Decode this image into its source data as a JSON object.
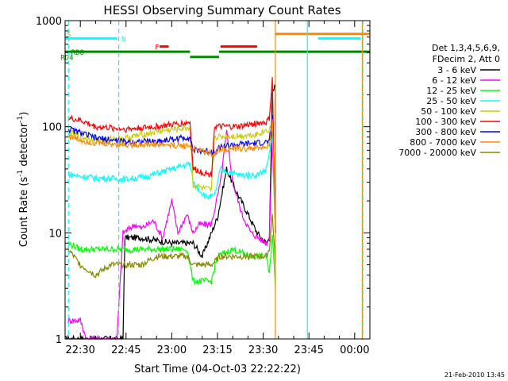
{
  "chart_data": {
    "type": "line",
    "title": "HESSI Observing Summary Count Rates",
    "xlabel": "Start Time (04-Oct-03 22:22:22)",
    "ylabel_main": "Count Rate (s",
    "ylabel_sup": "-1",
    "ylabel_rest": " detector",
    "ylabel_sup2": "-1",
    "ylabel_end": ")",
    "y_scale": "log",
    "ylim": [
      1,
      1000
    ],
    "xlim_minutes": [
      -5,
      95
    ],
    "y_ticks": [
      "1",
      "10",
      "100",
      "1000"
    ],
    "x_ticks": [
      {
        "label": "22:30",
        "t": 0
      },
      {
        "label": "22:45",
        "t": 15
      },
      {
        "label": "23:00",
        "t": 30
      },
      {
        "label": "23:15",
        "t": 45
      },
      {
        "label": "23:30",
        "t": 60
      },
      {
        "label": "23:45",
        "t": 75
      },
      {
        "label": "00:00",
        "t": 90
      }
    ],
    "legend_header": [
      "Det 1,3,4,5,6,9,",
      "FDecim 2, Att 0"
    ],
    "legend_placement": "right",
    "series": [
      {
        "name": "3 - 6 keV",
        "color": "#000000",
        "points": [
          [
            -5,
            1
          ],
          [
            14,
            1
          ],
          [
            14.6,
            9
          ],
          [
            20,
            9
          ],
          [
            30,
            8
          ],
          [
            37,
            8
          ],
          [
            40,
            6
          ],
          [
            45,
            14
          ],
          [
            48,
            40
          ],
          [
            51,
            25
          ],
          [
            55,
            15
          ],
          [
            58,
            10
          ],
          [
            61,
            8
          ],
          [
            62,
            9
          ],
          [
            63,
            200
          ],
          [
            64,
            250
          ],
          [
            64,
            10
          ]
        ]
      },
      {
        "name": "6 - 12 keV",
        "color": "#ff00ff",
        "points": [
          [
            -4,
            1.5
          ],
          [
            0,
            1.5
          ],
          [
            2,
            1
          ],
          [
            12,
            1
          ],
          [
            14,
            10
          ],
          [
            18,
            12
          ],
          [
            20,
            11
          ],
          [
            24,
            13
          ],
          [
            27,
            9
          ],
          [
            30,
            20
          ],
          [
            32,
            10
          ],
          [
            35,
            15
          ],
          [
            37,
            10
          ],
          [
            39,
            12
          ],
          [
            43,
            12
          ],
          [
            46,
            30
          ],
          [
            48,
            90
          ],
          [
            50,
            30
          ],
          [
            53,
            15
          ],
          [
            56,
            10
          ],
          [
            61,
            8
          ],
          [
            62,
            9
          ],
          [
            63,
            80
          ],
          [
            64,
            10
          ]
        ]
      },
      {
        "name": "12 - 25 keV",
        "color": "#00ff00",
        "points": [
          [
            -4,
            8
          ],
          [
            0,
            7
          ],
          [
            10,
            7
          ],
          [
            20,
            7
          ],
          [
            35,
            7
          ],
          [
            37,
            3.5
          ],
          [
            43,
            3.5
          ],
          [
            45,
            6
          ],
          [
            50,
            7
          ],
          [
            56,
            6
          ],
          [
            61,
            6
          ],
          [
            62,
            4
          ],
          [
            63,
            10
          ],
          [
            64,
            3
          ]
        ]
      },
      {
        "name": "25 - 50 keV",
        "color": "#00ffff",
        "points": [
          [
            -4,
            36
          ],
          [
            0,
            34
          ],
          [
            5,
            33
          ],
          [
            15,
            32
          ],
          [
            22,
            34
          ],
          [
            30,
            40
          ],
          [
            36,
            45
          ],
          [
            37,
            30
          ],
          [
            41,
            22
          ],
          [
            44,
            22
          ],
          [
            46,
            40
          ],
          [
            52,
            35
          ],
          [
            58,
            35
          ],
          [
            61,
            40
          ],
          [
            63,
            80
          ],
          [
            64,
            10
          ]
        ]
      },
      {
        "name": "50 - 100 keV",
        "color": "#cccc00",
        "points": [
          [
            -4,
            90
          ],
          [
            0,
            80
          ],
          [
            5,
            75
          ],
          [
            15,
            78
          ],
          [
            25,
            90
          ],
          [
            36,
            98
          ],
          [
            37,
            28
          ],
          [
            43,
            25
          ],
          [
            44,
            80
          ],
          [
            52,
            82
          ],
          [
            58,
            85
          ],
          [
            62,
            95
          ],
          [
            63,
            100
          ],
          [
            64,
            10
          ]
        ]
      },
      {
        "name": "100 - 300 keV",
        "color": "#ff0000",
        "points": [
          [
            -4,
            120
          ],
          [
            0,
            115
          ],
          [
            5,
            100
          ],
          [
            15,
            95
          ],
          [
            25,
            100
          ],
          [
            36,
            110
          ],
          [
            37,
            40
          ],
          [
            43,
            35
          ],
          [
            44,
            100
          ],
          [
            52,
            100
          ],
          [
            58,
            108
          ],
          [
            61,
            110
          ],
          [
            62,
            120
          ],
          [
            63,
            280
          ],
          [
            64,
            10
          ]
        ]
      },
      {
        "name": "300 - 800 keV",
        "color": "#0000ff",
        "points": [
          [
            -4,
            95
          ],
          [
            0,
            88
          ],
          [
            5,
            78
          ],
          [
            15,
            72
          ],
          [
            25,
            73
          ],
          [
            36,
            80
          ],
          [
            37,
            60
          ],
          [
            44,
            58
          ],
          [
            46,
            65
          ],
          [
            52,
            68
          ],
          [
            58,
            70
          ],
          [
            62,
            72
          ],
          [
            63,
            130
          ],
          [
            64,
            10
          ]
        ]
      },
      {
        "name": "800 - 7000 keV",
        "color": "#ff8800",
        "points": [
          [
            -4,
            82
          ],
          [
            0,
            75
          ],
          [
            5,
            70
          ],
          [
            15,
            68
          ],
          [
            25,
            68
          ],
          [
            36,
            66
          ],
          [
            37,
            62
          ],
          [
            44,
            55
          ],
          [
            46,
            62
          ],
          [
            52,
            62
          ],
          [
            58,
            63
          ],
          [
            62,
            65
          ],
          [
            63,
            110
          ],
          [
            64,
            10
          ]
        ]
      },
      {
        "name": "7000 - 20000 keV",
        "color": "#888800",
        "points": [
          [
            -4,
            7
          ],
          [
            0,
            5
          ],
          [
            5,
            4
          ],
          [
            10,
            5
          ],
          [
            20,
            5
          ],
          [
            25,
            6
          ],
          [
            30,
            6
          ],
          [
            35,
            6
          ],
          [
            37,
            5
          ],
          [
            43,
            5
          ],
          [
            46,
            6
          ],
          [
            50,
            6
          ],
          [
            56,
            6
          ],
          [
            61,
            6
          ],
          [
            62,
            7
          ],
          [
            63,
            15
          ],
          [
            64,
            5
          ]
        ]
      }
    ],
    "flags": [
      {
        "label": "S",
        "color": "#ff8800",
        "y": 750,
        "segments": [],
        "label_t": -4.5
      },
      {
        "label": "N",
        "color": "#00ffff",
        "y": 680,
        "segments": [
          [
            -5,
            12
          ],
          [
            78,
            92
          ]
        ],
        "label_t": 13.5
      },
      {
        "label": "F",
        "color": "#ff0000",
        "y": 570,
        "segments": [
          [
            26,
            29
          ],
          [
            46,
            58
          ]
        ],
        "label_t": 24.5
      },
      {
        "label": "RDO",
        "color": "#008800",
        "y": 510,
        "segments": [
          [
            -5,
            36
          ]
        ],
        "label_t": -3.0
      },
      {
        "label": "RD4",
        "color": "#008800",
        "y": 455,
        "segments": [
          [
            36,
            45.5
          ]
        ],
        "label_t": -6.5
      }
    ],
    "flag_extra": [
      {
        "color": "#ff8800",
        "y": 750,
        "segments": [
          [
            64,
            95
          ]
        ]
      },
      {
        "color": "#008800",
        "y": 510,
        "segments": [
          [
            45.5,
            95
          ]
        ]
      }
    ],
    "vlines": [
      {
        "t": -3.9,
        "color": "#00ffff",
        "dashed": true
      },
      {
        "t": 12.6,
        "color": "#00ffff",
        "dashed": true
      },
      {
        "t": 64.0,
        "color": "#ff8800",
        "dashed": false
      },
      {
        "t": 74.5,
        "color": "#00ffff",
        "dashed": false
      },
      {
        "t": 92.5,
        "color": "#ff8800",
        "dashed": false
      },
      {
        "t": 92.7,
        "color": "#00ffff",
        "dashed": true
      }
    ],
    "timestamp": "21-Feb-2010 13:45"
  }
}
